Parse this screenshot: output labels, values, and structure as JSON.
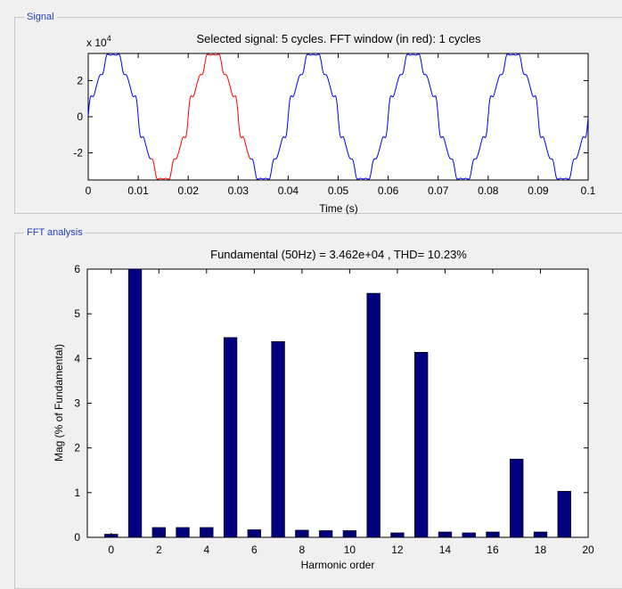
{
  "signal_panel": {
    "title": "Signal"
  },
  "fft_panel": {
    "title": "FFT analysis"
  },
  "chart_data": [
    {
      "type": "line",
      "title": "Selected signal: 5 cycles. FFT window (in red): 1 cycles",
      "xlabel": "Time (s)",
      "ylabel": "",
      "y_multiplier_label": "x 10",
      "y_multiplier_exp": "4",
      "xlim": [
        0,
        0.1
      ],
      "ylim": [
        -3.5,
        3.5
      ],
      "x_ticks": [
        "0",
        "0.01",
        "0.02",
        "0.03",
        "0.04",
        "0.05",
        "0.06",
        "0.07",
        "0.08",
        "0.09",
        "0.1"
      ],
      "y_ticks": [
        "-2",
        "0",
        "2"
      ],
      "frequency_hz": 50,
      "amplitude": 3.462,
      "fft_window": [
        0.0125,
        0.0325
      ],
      "colors": {
        "signal": "#0000ff",
        "window": "#ff0000"
      }
    },
    {
      "type": "bar",
      "title": "Fundamental (50Hz) = 3.462e+04 , THD= 10.23%",
      "xlabel": "Harmonic order",
      "ylabel": "Mag (% of Fundamental)",
      "xlim": [
        -1,
        20
      ],
      "ylim": [
        0,
        6
      ],
      "x_ticks": [
        "0",
        "2",
        "4",
        "6",
        "8",
        "10",
        "12",
        "14",
        "16",
        "18",
        "20"
      ],
      "y_ticks": [
        "0",
        "1",
        "2",
        "3",
        "4",
        "5",
        "6"
      ],
      "categories": [
        0,
        1,
        2,
        3,
        4,
        5,
        6,
        7,
        8,
        9,
        10,
        11,
        12,
        13,
        14,
        15,
        16,
        17,
        18,
        19
      ],
      "values": [
        0.07,
        6.0,
        0.22,
        0.22,
        0.22,
        4.47,
        0.17,
        4.38,
        0.16,
        0.15,
        0.15,
        5.46,
        0.1,
        4.14,
        0.12,
        0.1,
        0.12,
        1.75,
        0.12,
        1.03
      ],
      "colors": {
        "bar": "#00007f",
        "bar_edge": "#000000"
      }
    }
  ]
}
